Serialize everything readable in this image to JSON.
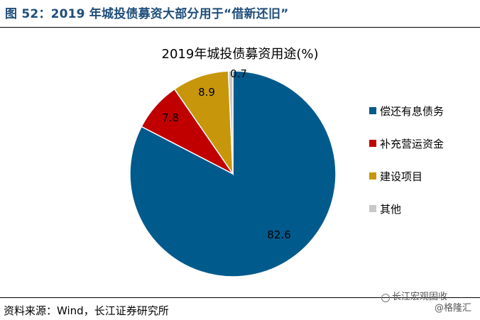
{
  "header": {
    "figure_title": "图 52：2019 年城投债募资大部分用于“借新还旧”"
  },
  "source": {
    "text": "资料来源：Wind，长江证券研究所"
  },
  "watermark": {
    "line1": "长江宏观固收",
    "line2": "@格隆汇"
  },
  "chart_data": {
    "type": "pie",
    "title": "2019年城投债募资用途(%)",
    "legend_position": "right",
    "series": [
      {
        "name": "偿还有息债务",
        "value": 82.6,
        "label": "82.6",
        "color": "#005a8c"
      },
      {
        "name": "补充营运资金",
        "value": 7.8,
        "label": "7.8",
        "color": "#c00000"
      },
      {
        "name": "建设项目",
        "value": 8.9,
        "label": "8.9",
        "color": "#c8960a"
      },
      {
        "name": "其他",
        "value": 0.7,
        "label": "0.7",
        "color": "#c8c8c8"
      }
    ]
  }
}
